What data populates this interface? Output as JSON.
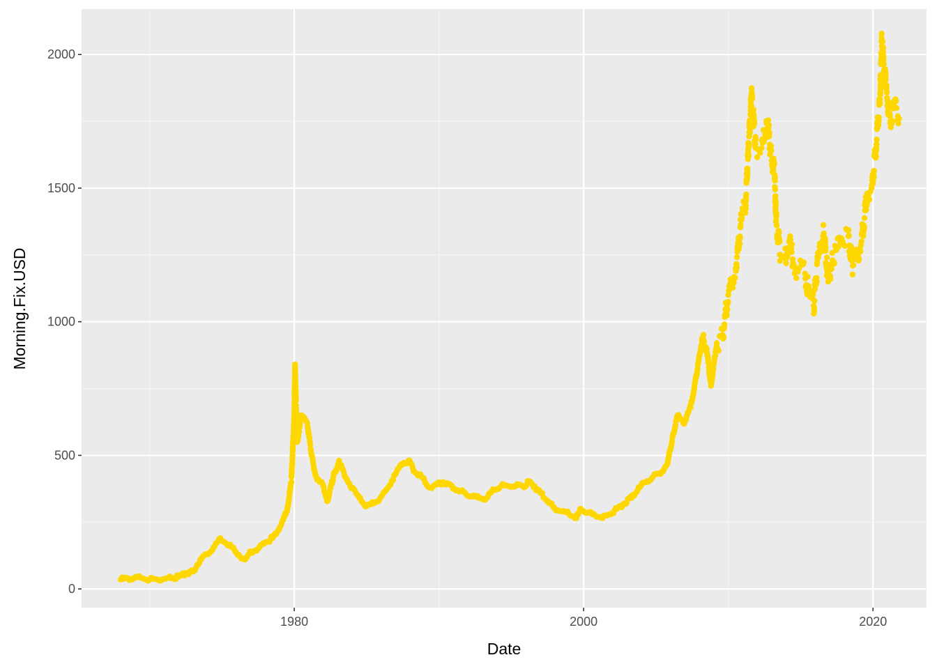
{
  "chart_data": {
    "type": "scatter",
    "xlabel": "Date",
    "ylabel": "Morning.Fix.USD",
    "x_ticks": [
      1980,
      2000,
      2020
    ],
    "y_ticks": [
      0,
      500,
      1000,
      1500,
      2000
    ],
    "xlim": [
      1965.3,
      2023.7
    ],
    "ylim": [
      -70,
      2170
    ],
    "grid": true,
    "legend": "none",
    "colors": {
      "panel_background": "#ebebeb",
      "grid_major": "#ffffff",
      "grid_minor": "#f5f5f5",
      "points": "#ffd700",
      "tick_text": "#4d4d4d",
      "tick_mark": "#333333"
    },
    "series": [
      {
        "values": [
          [
            1968.0,
            35
          ],
          [
            1968.5,
            40
          ],
          [
            1969.0,
            42
          ],
          [
            1969.5,
            40
          ],
          [
            1970.0,
            35
          ],
          [
            1970.5,
            36
          ],
          [
            1971.0,
            37
          ],
          [
            1971.5,
            40
          ],
          [
            1972.0,
            45
          ],
          [
            1972.5,
            60
          ],
          [
            1973.0,
            65
          ],
          [
            1973.5,
            110
          ],
          [
            1974.0,
            130
          ],
          [
            1974.5,
            160
          ],
          [
            1974.9,
            190
          ],
          [
            1975.5,
            165
          ],
          [
            1976.0,
            135
          ],
          [
            1976.6,
            110
          ],
          [
            1977.0,
            140
          ],
          [
            1977.5,
            150
          ],
          [
            1978.0,
            175
          ],
          [
            1978.5,
            190
          ],
          [
            1979.0,
            230
          ],
          [
            1979.5,
            290
          ],
          [
            1979.8,
            400
          ],
          [
            1980.0,
            650
          ],
          [
            1980.05,
            840
          ],
          [
            1980.2,
            550
          ],
          [
            1980.5,
            650
          ],
          [
            1980.9,
            620
          ],
          [
            1981.2,
            500
          ],
          [
            1981.5,
            420
          ],
          [
            1981.9,
            400
          ],
          [
            1982.3,
            330
          ],
          [
            1982.7,
            420
          ],
          [
            1983.1,
            480
          ],
          [
            1983.5,
            420
          ],
          [
            1984.0,
            380
          ],
          [
            1984.5,
            340
          ],
          [
            1985.0,
            310
          ],
          [
            1985.5,
            320
          ],
          [
            1986.0,
            345
          ],
          [
            1986.5,
            380
          ],
          [
            1987.0,
            430
          ],
          [
            1987.5,
            470
          ],
          [
            1987.9,
            480
          ],
          [
            1988.3,
            440
          ],
          [
            1988.8,
            420
          ],
          [
            1989.3,
            380
          ],
          [
            1989.8,
            390
          ],
          [
            1990.3,
            400
          ],
          [
            1990.8,
            390
          ],
          [
            1991.3,
            370
          ],
          [
            1991.8,
            360
          ],
          [
            1992.3,
            345
          ],
          [
            1992.8,
            340
          ],
          [
            1993.3,
            340
          ],
          [
            1993.8,
            370
          ],
          [
            1994.3,
            385
          ],
          [
            1994.8,
            385
          ],
          [
            1995.3,
            385
          ],
          [
            1995.8,
            385
          ],
          [
            1996.2,
            400
          ],
          [
            1996.6,
            385
          ],
          [
            1997.0,
            360
          ],
          [
            1997.5,
            330
          ],
          [
            1998.0,
            300
          ],
          [
            1998.5,
            290
          ],
          [
            1999.0,
            280
          ],
          [
            1999.5,
            265
          ],
          [
            1999.8,
            300
          ],
          [
            2000.3,
            285
          ],
          [
            2000.8,
            275
          ],
          [
            2001.3,
            265
          ],
          [
            2001.8,
            280
          ],
          [
            2002.3,
            300
          ],
          [
            2002.8,
            320
          ],
          [
            2003.3,
            340
          ],
          [
            2003.8,
            380
          ],
          [
            2004.3,
            400
          ],
          [
            2004.8,
            420
          ],
          [
            2005.3,
            430
          ],
          [
            2005.8,
            470
          ],
          [
            2006.2,
            580
          ],
          [
            2006.5,
            650
          ],
          [
            2006.9,
            620
          ],
          [
            2007.4,
            680
          ],
          [
            2007.8,
            800
          ],
          [
            2008.2,
            940
          ],
          [
            2008.5,
            900
          ],
          [
            2008.8,
            760
          ],
          [
            2009.2,
            920
          ],
          [
            2009.6,
            950
          ],
          [
            2010.0,
            1100
          ],
          [
            2010.5,
            1200
          ],
          [
            2010.9,
            1380
          ],
          [
            2011.2,
            1450
          ],
          [
            2011.6,
            1850
          ],
          [
            2011.9,
            1650
          ],
          [
            2012.3,
            1650
          ],
          [
            2012.7,
            1750
          ],
          [
            2012.9,
            1650
          ],
          [
            2013.2,
            1550
          ],
          [
            2013.3,
            1380
          ],
          [
            2013.6,
            1250
          ],
          [
            2013.9,
            1240
          ],
          [
            2014.2,
            1300
          ],
          [
            2014.6,
            1200
          ],
          [
            2014.9,
            1200
          ],
          [
            2015.3,
            1180
          ],
          [
            2015.6,
            1100
          ],
          [
            2015.9,
            1060
          ],
          [
            2016.2,
            1240
          ],
          [
            2016.6,
            1330
          ],
          [
            2016.9,
            1150
          ],
          [
            2017.2,
            1230
          ],
          [
            2017.6,
            1280
          ],
          [
            2017.9,
            1300
          ],
          [
            2018.3,
            1320
          ],
          [
            2018.6,
            1210
          ],
          [
            2018.9,
            1250
          ],
          [
            2019.2,
            1300
          ],
          [
            2019.6,
            1480
          ],
          [
            2019.9,
            1500
          ],
          [
            2020.2,
            1650
          ],
          [
            2020.5,
            1850
          ],
          [
            2020.6,
            2050
          ],
          [
            2020.9,
            1880
          ],
          [
            2021.2,
            1750
          ],
          [
            2021.5,
            1800
          ],
          [
            2021.8,
            1760
          ]
        ]
      }
    ]
  }
}
